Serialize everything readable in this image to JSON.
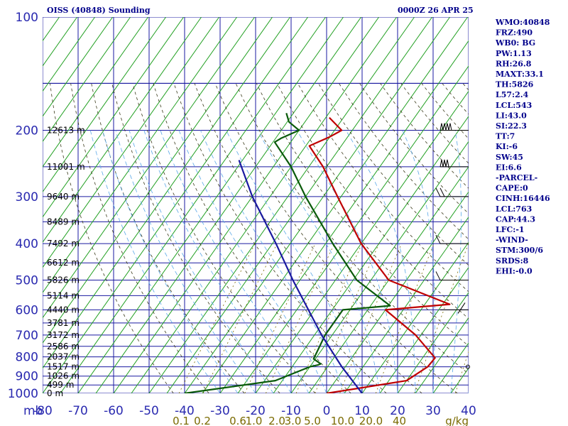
{
  "header": {
    "title": "OISS (40848) Sounding",
    "time": "0000Z 26 APR 25"
  },
  "indices": [
    "WMO:40848",
    "FRZ:490",
    "WB0: BG",
    "PW:1.13",
    "RH:26.8",
    "MAXT:33.1",
    "TH:5826",
    "L57:2.4",
    "LCL:543",
    "LI:43.0",
    "SI:22.3",
    "TT:7",
    "KI:-6",
    "SW:45",
    "EI:6.6",
    "-PARCEL-",
    "CAPE:0",
    "CINH:16446",
    "LCL:763",
    "CAP:44.3",
    "LFC:-1",
    "-WIND-",
    "STM:300/6",
    "SRDS:8",
    "EHI:-0.0"
  ],
  "chart_data": {
    "type": "skew-t",
    "title": "OISS (40848) Sounding",
    "pressure_axis": {
      "label": "mb",
      "scale": "log",
      "range": [
        1000,
        100
      ],
      "ticks": [
        1000,
        900,
        800,
        700,
        600,
        500,
        400,
        300,
        200,
        100
      ]
    },
    "temperature_axis": {
      "range": [
        -80,
        40
      ],
      "ticks": [
        "-80",
        "-70",
        "-60",
        "-50",
        "-40",
        "-30",
        "-20",
        "-10",
        "0",
        "10",
        "20",
        "30",
        "40"
      ]
    },
    "mixing_ratio_axis": {
      "label": "g/kg",
      "ticks": [
        {
          "label": "0.1",
          "t": -41
        },
        {
          "label": "0.2",
          "t": -35
        },
        {
          "label": "0.6",
          "t": -25
        },
        {
          "label": "1.0",
          "t": -20.5
        },
        {
          "label": "2.0",
          "t": -14
        },
        {
          "label": "3.0",
          "t": -9.5
        },
        {
          "label": "5.0",
          "t": -4
        },
        {
          "label": "10.0",
          "t": 4.5
        },
        {
          "label": "20.0",
          "t": 12.5
        },
        {
          "label": "40",
          "t": 20.5
        }
      ]
    },
    "height_labels": [
      {
        "p": 200,
        "label": "12613 m"
      },
      {
        "p": 250,
        "label": "11001 m"
      },
      {
        "p": 300,
        "label": "9640 m"
      },
      {
        "p": 350,
        "label": "8489 m"
      },
      {
        "p": 400,
        "label": "7492 m"
      },
      {
        "p": 450,
        "label": "6612 m"
      },
      {
        "p": 500,
        "label": "5826 m"
      },
      {
        "p": 550,
        "label": "5114 m"
      },
      {
        "p": 600,
        "label": "4440 m"
      },
      {
        "p": 650,
        "label": "3781 m"
      },
      {
        "p": 700,
        "label": "3172 m"
      },
      {
        "p": 750,
        "label": "2586 m"
      },
      {
        "p": 800,
        "label": "2037 m"
      },
      {
        "p": 850,
        "label": "1517 m"
      },
      {
        "p": 900,
        "label": "1026 m"
      },
      {
        "p": 950,
        "label": "499 m"
      },
      {
        "p": 1000,
        "label": "0 m"
      }
    ],
    "series": [
      {
        "color": "#c00000",
        "points": [
          [
            1000,
            0
          ],
          [
            925,
            20
          ],
          [
            850,
            23.2
          ],
          [
            835,
            23.3
          ],
          [
            805,
            23.5
          ],
          [
            700,
            13.5
          ],
          [
            600,
            0
          ],
          [
            580,
            17
          ],
          [
            500,
            -5
          ],
          [
            400,
            -20
          ],
          [
            300,
            -36
          ],
          [
            250,
            -46
          ],
          [
            220,
            -54
          ],
          [
            208,
            -50
          ],
          [
            200,
            -48
          ],
          [
            185,
            -54
          ]
        ]
      },
      {
        "color": "#0a5a0a",
        "points": [
          [
            1000,
            -40
          ],
          [
            925,
            -17
          ],
          [
            850,
            -10
          ],
          [
            840,
            -8
          ],
          [
            835,
            -7.5
          ],
          [
            810,
            -10.5
          ],
          [
            700,
            -12
          ],
          [
            600,
            -12
          ],
          [
            585,
            0.5
          ],
          [
            500,
            -14
          ],
          [
            400,
            -28
          ],
          [
            300,
            -45
          ],
          [
            250,
            -55
          ],
          [
            215,
            -64.5
          ],
          [
            210,
            -63.5
          ],
          [
            200,
            -60
          ],
          [
            190,
            -64.5
          ],
          [
            180,
            -67
          ]
        ]
      },
      {
        "color": "#1a1aa0",
        "points": [
          [
            1000,
            10
          ],
          [
            850,
            -1
          ],
          [
            700,
            -13
          ],
          [
            500,
            -32
          ],
          [
            400,
            -44
          ],
          [
            300,
            -60
          ],
          [
            240,
            -71
          ]
        ]
      }
    ],
    "wind_barbs": [
      {
        "p": 200,
        "barbs": "flags-4"
      },
      {
        "p": 250,
        "barbs": "flags-3"
      },
      {
        "p": 300,
        "barbs": "long-2"
      },
      {
        "p": 400,
        "barbs": "long-1"
      },
      {
        "p": 500,
        "barbs": "long-1"
      },
      {
        "p": 600,
        "barbs": "short"
      },
      {
        "p": 850,
        "barbs": "calm"
      }
    ],
    "grid": true,
    "dry_adiabats": true,
    "moist_adiabats": true,
    "mixing_ratio_lines": true,
    "legend": "none"
  },
  "colors": {
    "grid": "#1a1aa0",
    "isotherm": "#22a022",
    "dry_adiabat": "#3a3a1a",
    "moist_adiabat": "#5aa8e8",
    "mixing_ratio": "#7a6a00",
    "text": "#00008b"
  }
}
